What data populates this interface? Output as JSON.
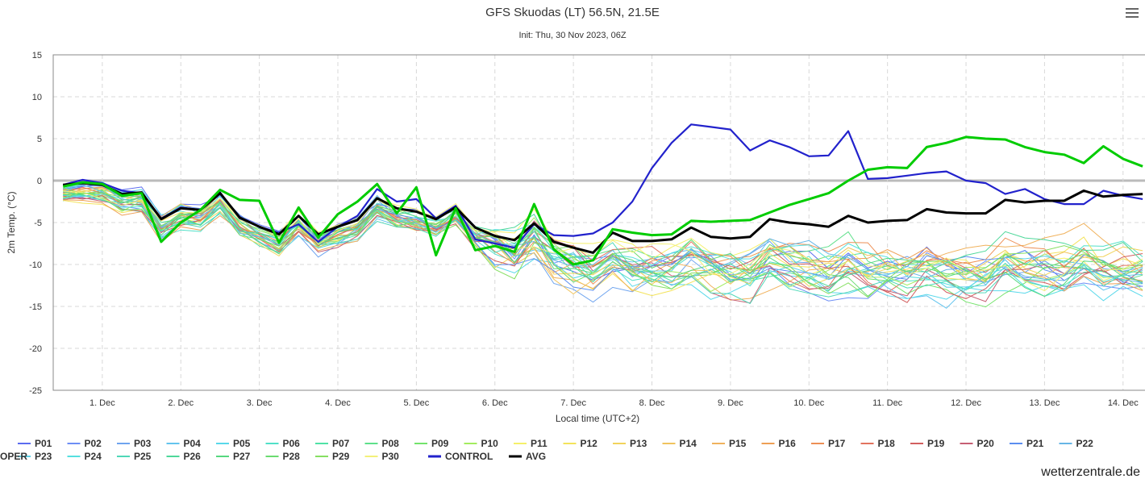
{
  "header": {
    "title": "GFS Skuodas (LT) 56.5N, 21.5E",
    "subtitle": "Init: Thu, 30 Nov 2023, 06Z",
    "menu_icon": "hamburger-menu-icon"
  },
  "credit": "wetterzentrale.de",
  "chart_data": {
    "type": "line",
    "title": "GFS Skuodas (LT) 56.5N, 21.5E",
    "subtitle": "Init: Thu, 30 Nov 2023, 06Z",
    "xlabel": "Local time (UTC+2)",
    "ylabel": "2m Temp. (°C)",
    "ylim": [
      -25,
      15
    ],
    "yticks": [
      15,
      10,
      5,
      0,
      -5,
      -10,
      -15,
      -20,
      -25
    ],
    "x_units": "days since 30 Nov 2023 00:00 local",
    "xlim": [
      0.375,
      14.3
    ],
    "xticks": [
      "1. Dec",
      "2. Dec",
      "3. Dec",
      "4. Dec",
      "5. Dec",
      "6. Dec",
      "7. Dec",
      "8. Dec",
      "9. Dec",
      "10. Dec",
      "11. Dec",
      "12. Dec",
      "13. Dec",
      "14. Dec"
    ],
    "grid": true,
    "legend_position": "bottom",
    "series": [
      {
        "name": "CONTROL",
        "color": "#2222cc",
        "width": 2.2,
        "x": [
          0.5,
          0.75,
          1,
          1.25,
          1.5,
          1.75,
          2,
          2.25,
          2.5,
          2.75,
          3,
          3.25,
          3.5,
          3.75,
          4,
          4.25,
          4.5,
          4.75,
          5,
          5.25,
          5.5,
          5.75,
          6,
          6.25,
          6.5,
          6.75,
          7,
          7.25,
          7.5,
          7.75,
          8,
          8.25,
          8.5,
          8.75,
          9,
          9.25,
          9.5,
          9.75,
          10,
          10.25,
          10.5,
          10.75,
          11,
          11.25,
          11.5,
          11.75,
          12,
          12.25,
          12.5,
          12.75,
          13,
          13.25,
          13.5,
          13.75,
          14,
          14.25
        ],
        "y": [
          -0.5,
          0.1,
          -0.3,
          -1.2,
          -1.5,
          -4.5,
          -3.2,
          -3.5,
          -1.4,
          -4.5,
          -5.5,
          -6.2,
          -5.2,
          -7.3,
          -5.5,
          -4.2,
          -1,
          -2.5,
          -2.2,
          -4.5,
          -3,
          -7,
          -7.5,
          -8,
          -5.2,
          -6.5,
          -6.6,
          -6.3,
          -5,
          -2.5,
          1.5,
          4.5,
          6.7,
          6.4,
          6.1,
          3.6,
          4.8,
          4,
          2.9,
          3,
          5.9,
          0.2,
          0.3,
          0.6,
          0.9,
          1.1,
          0,
          -0.3,
          -1.6,
          -1,
          -2.2,
          -2.8,
          -2.8,
          -1.2,
          -1.8,
          -2.2
        ]
      },
      {
        "name": "AVG",
        "color": "#000000",
        "width": 3,
        "x": [
          0.5,
          0.75,
          1,
          1.25,
          1.5,
          1.75,
          2,
          2.25,
          2.5,
          2.75,
          3,
          3.25,
          3.5,
          3.75,
          4,
          4.25,
          4.5,
          4.75,
          5,
          5.25,
          5.5,
          5.75,
          6,
          6.25,
          6.5,
          6.75,
          7,
          7.25,
          7.5,
          7.75,
          8,
          8.25,
          8.5,
          8.75,
          9,
          9.25,
          9.5,
          9.75,
          10,
          10.25,
          10.5,
          10.75,
          11,
          11.25,
          11.5,
          11.75,
          12,
          12.25,
          12.5,
          12.75,
          13,
          13.25,
          13.5,
          13.75,
          14,
          14.25
        ],
        "y": [
          -0.5,
          -0.3,
          -0.5,
          -1.6,
          -1.4,
          -4.6,
          -3.3,
          -3.5,
          -1.5,
          -4.4,
          -5.5,
          -6.4,
          -4.2,
          -6.4,
          -5.5,
          -4.7,
          -2.1,
          -3.3,
          -3.7,
          -4.6,
          -3.2,
          -5.6,
          -6.6,
          -7.1,
          -5.1,
          -7.3,
          -8,
          -8.6,
          -6.2,
          -7.2,
          -7.2,
          -7,
          -5.6,
          -6.7,
          -6.9,
          -6.7,
          -4.6,
          -5,
          -5.2,
          -5.5,
          -4.2,
          -5,
          -4.8,
          -4.7,
          -3.4,
          -3.8,
          -3.9,
          -3.9,
          -2.3,
          -2.6,
          -2.4,
          -2.4,
          -1.2,
          -1.9,
          -1.7,
          -1.6
        ]
      },
      {
        "name": "OPER",
        "color": "#00cc00",
        "width": 3,
        "x": [
          0.5,
          0.75,
          1,
          1.25,
          1.5,
          1.75,
          2,
          2.25,
          2.5,
          2.75,
          3,
          3.25,
          3.5,
          3.75,
          4,
          4.25,
          4.5,
          4.75,
          5,
          5.25,
          5.5,
          5.75,
          6,
          6.25,
          6.5,
          6.75,
          7,
          7.25,
          7.5,
          7.75,
          8,
          8.25,
          8.5,
          8.75,
          9,
          9.25,
          9.5,
          9.75,
          10,
          10.25,
          10.5,
          10.75,
          11,
          11.25,
          11.5,
          11.75,
          12,
          12.25,
          12.5,
          12.75,
          13,
          13.25,
          13.5,
          13.75,
          14,
          14.25
        ],
        "y": [
          -0.7,
          -0.2,
          -0.4,
          -1.8,
          -1.5,
          -7.3,
          -5,
          -3.5,
          -1.1,
          -2.3,
          -2.4,
          -7.4,
          -3.2,
          -6.8,
          -4,
          -2.5,
          -0.4,
          -3.9,
          -0.8,
          -8.9,
          -3.3,
          -8.3,
          -7.8,
          -8.5,
          -2.8,
          -8.2,
          -10,
          -9.5,
          -5.8,
          -6.2,
          -6.5,
          -6.4,
          -4.8,
          -4.9,
          -4.8,
          -4.7,
          -3.8,
          -2.9,
          -2.2,
          -1.5,
          0,
          1.3,
          1.6,
          1.5,
          4,
          4.5,
          5.2,
          5,
          4.9,
          4,
          3.4,
          3.1,
          2.1,
          4.1,
          2.6,
          1.7
        ]
      }
    ],
    "ensemble_members": [
      {
        "name": "P01",
        "color": "#5b6bf0"
      },
      {
        "name": "P02",
        "color": "#6d8ef5"
      },
      {
        "name": "P03",
        "color": "#6ea4ef"
      },
      {
        "name": "P04",
        "color": "#63c4ee"
      },
      {
        "name": "P05",
        "color": "#58d8ea"
      },
      {
        "name": "P06",
        "color": "#50e0c8"
      },
      {
        "name": "P07",
        "color": "#4fe2a6"
      },
      {
        "name": "P08",
        "color": "#5ee08a"
      },
      {
        "name": "P09",
        "color": "#73e36b"
      },
      {
        "name": "P10",
        "color": "#a3ec5f"
      },
      {
        "name": "P11",
        "color": "#f5f06a"
      },
      {
        "name": "P12",
        "color": "#f3e35a"
      },
      {
        "name": "P13",
        "color": "#f1d35b"
      },
      {
        "name": "P14",
        "color": "#f0c35d"
      },
      {
        "name": "P15",
        "color": "#f0b25d"
      },
      {
        "name": "P16",
        "color": "#ee9f54"
      },
      {
        "name": "P17",
        "color": "#ed8f55"
      },
      {
        "name": "P18",
        "color": "#e2735e"
      },
      {
        "name": "P19",
        "color": "#d25f5f"
      },
      {
        "name": "P20",
        "color": "#c65f74"
      },
      {
        "name": "P21",
        "color": "#5b8ef0"
      },
      {
        "name": "P22",
        "color": "#67b6e6"
      },
      {
        "name": "P23",
        "color": "#5acfe6"
      },
      {
        "name": "P24",
        "color": "#55e0e0"
      },
      {
        "name": "P25",
        "color": "#4fd8b8"
      },
      {
        "name": "P26",
        "color": "#4ed89a"
      },
      {
        "name": "P27",
        "color": "#56d87f"
      },
      {
        "name": "P28",
        "color": "#6adb70"
      },
      {
        "name": "P29",
        "color": "#86df62"
      },
      {
        "name": "P30",
        "color": "#f3f07a"
      }
    ],
    "legend": [
      {
        "name": "P01",
        "color": "#5b6bf0"
      },
      {
        "name": "P02",
        "color": "#6d8ef5"
      },
      {
        "name": "P03",
        "color": "#6ea4ef"
      },
      {
        "name": "P04",
        "color": "#63c4ee"
      },
      {
        "name": "P05",
        "color": "#58d8ea"
      },
      {
        "name": "P06",
        "color": "#50e0c8"
      },
      {
        "name": "P07",
        "color": "#4fe2a6"
      },
      {
        "name": "P08",
        "color": "#5ee08a"
      },
      {
        "name": "P09",
        "color": "#73e36b"
      },
      {
        "name": "P10",
        "color": "#a3ec5f"
      },
      {
        "name": "P11",
        "color": "#f5f06a"
      },
      {
        "name": "P12",
        "color": "#f3e35a"
      },
      {
        "name": "P13",
        "color": "#f1d35b"
      },
      {
        "name": "P14",
        "color": "#f0c35d"
      },
      {
        "name": "P15",
        "color": "#f0b25d"
      },
      {
        "name": "P16",
        "color": "#ee9f54"
      },
      {
        "name": "P17",
        "color": "#ed8f55"
      },
      {
        "name": "P18",
        "color": "#e2735e"
      },
      {
        "name": "P19",
        "color": "#d25f5f"
      },
      {
        "name": "P20",
        "color": "#c65f74"
      },
      {
        "name": "P21",
        "color": "#5b8ef0"
      },
      {
        "name": "P22",
        "color": "#67b6e6"
      },
      {
        "name": "P23",
        "color": "#5acfe6"
      },
      {
        "name": "P24",
        "color": "#55e0e0"
      },
      {
        "name": "P25",
        "color": "#4fd8b8"
      },
      {
        "name": "P26",
        "color": "#4ed89a"
      },
      {
        "name": "P27",
        "color": "#56d87f"
      },
      {
        "name": "P28",
        "color": "#6adb70"
      },
      {
        "name": "P29",
        "color": "#86df62"
      },
      {
        "name": "P30",
        "color": "#f3f07a"
      },
      {
        "name": "CONTROL",
        "color": "#2222cc"
      },
      {
        "name": "AVG",
        "color": "#000000"
      },
      {
        "name": "OPER",
        "color": "#00cc00"
      }
    ]
  }
}
